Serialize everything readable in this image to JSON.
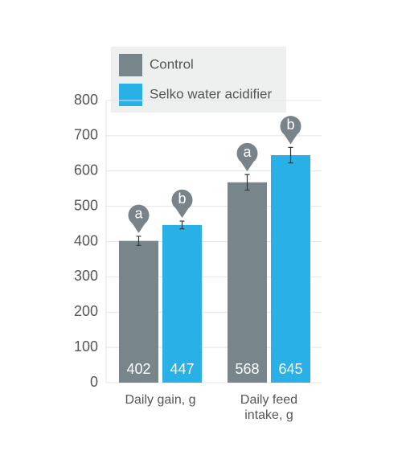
{
  "chart_data": {
    "type": "bar",
    "categories": [
      "Daily gain, g",
      "Daily feed intake, g"
    ],
    "series": [
      {
        "name": "Control",
        "color": "#78868c",
        "values": [
          402,
          568
        ],
        "errors": [
          13,
          22
        ],
        "letters": [
          "a",
          "a"
        ]
      },
      {
        "name": "Selko water acidifier",
        "color": "#29b0e6",
        "values": [
          447,
          645
        ],
        "errors": [
          11,
          22
        ],
        "letters": [
          "b",
          "b"
        ]
      }
    ],
    "ylim": [
      0,
      800
    ],
    "yticks": [
      0,
      100,
      200,
      300,
      400,
      500,
      600,
      700,
      800
    ],
    "grid": true
  }
}
